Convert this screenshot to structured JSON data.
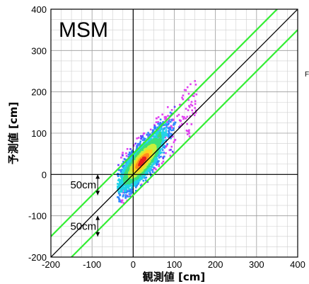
{
  "chart_data": {
    "type": "heatmap",
    "title": "MSM",
    "xlabel": "観測値 [cm]",
    "ylabel": "予測値 [cm]",
    "xlim": [
      -200,
      400
    ],
    "ylim": [
      -200,
      400
    ],
    "grid": true,
    "x_ticks": [
      "-200",
      "-100",
      "0",
      "100",
      "200",
      "300",
      "400"
    ],
    "y_ticks": [
      "400",
      "300",
      "200",
      "100",
      "0",
      "-100",
      "-200"
    ],
    "lines": [
      {
        "name": "y = x",
        "color": "#000000",
        "intercept": 0
      },
      {
        "name": "+50cm",
        "color": "#33ee33",
        "intercept": 50
      },
      {
        "name": "-50cm",
        "color": "#33ee33",
        "intercept": -50
      }
    ],
    "annotations": [
      {
        "text": "50cm",
        "x": -100,
        "y_from": -50,
        "y_to": 0
      },
      {
        "text": "50cm",
        "x": -100,
        "y_from": -150,
        "y_to": -100
      }
    ],
    "density_colors": [
      "#e040f0",
      "#6a3cff",
      "#2f86ff",
      "#22d3e8",
      "#3ae07a",
      "#c8f03c",
      "#ffd21e",
      "#ff8a1e",
      "#e81d1d"
    ],
    "edge_label": "F"
  }
}
